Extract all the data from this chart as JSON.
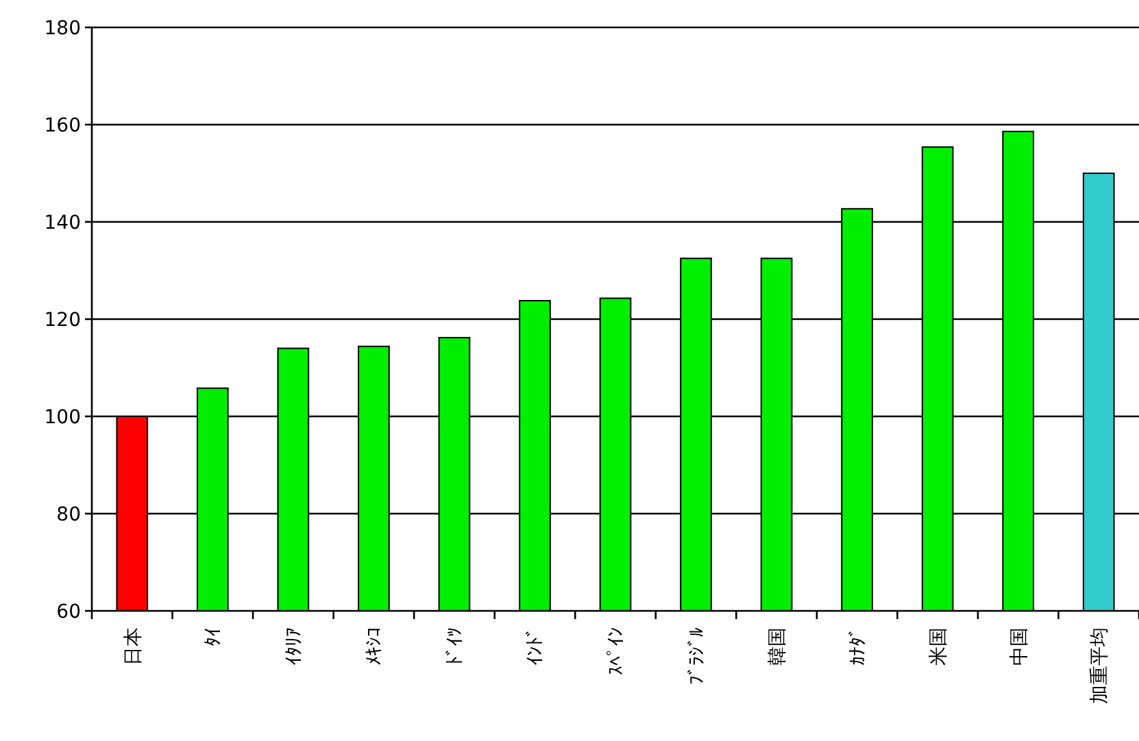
{
  "chart_data": {
    "type": "bar",
    "categories": [
      "日本",
      "ﾀｲ",
      "ｲﾀﾘｱ",
      "ﾒｷｼｺ",
      "ﾄﾞｲﾂ",
      "ｲﾝﾄﾞ",
      "ｽﾍﾟｲﾝ",
      "ﾌﾞﾗｼﾞﾙ",
      "韓国",
      "ｶﾅﾀﾞ",
      "米国",
      "中国",
      "加重平均"
    ],
    "values": [
      100,
      105.8,
      114.0,
      114.4,
      116.2,
      123.8,
      124.3,
      132.5,
      132.5,
      142.7,
      155.4,
      158.6,
      150.0
    ],
    "colors": [
      "#ff0000",
      "#00ee00",
      "#00ee00",
      "#00ee00",
      "#00ee00",
      "#00ee00",
      "#00ee00",
      "#00ee00",
      "#00ee00",
      "#00ee00",
      "#00ee00",
      "#00ee00",
      "#33cccc"
    ],
    "ylim": [
      60,
      180
    ],
    "yticks": [
      60,
      80,
      100,
      120,
      140,
      160,
      180
    ],
    "grid": "y"
  }
}
